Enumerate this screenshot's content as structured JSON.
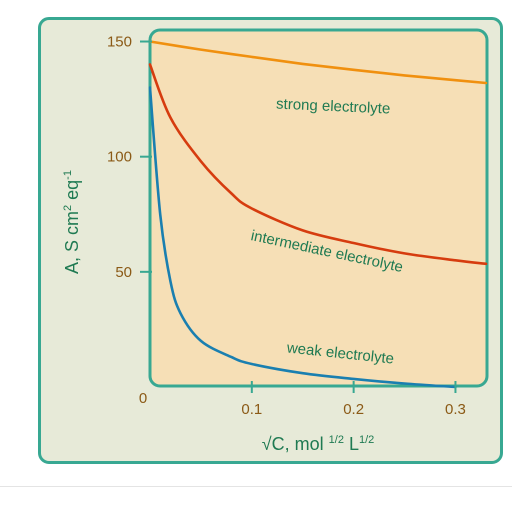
{
  "colors": {
    "panel_bg": "#e7ead8",
    "panel_border": "#38a892",
    "plot_bg": "#f6dfb6",
    "plot_border": "#38a892",
    "tick_text": "#8b5a16",
    "axis_label": "#1f7a52"
  },
  "chart_data": {
    "type": "line",
    "title": "",
    "xlabel": {
      "prefix": "√C, mol ",
      "sup1": "1/2",
      "mid": " L",
      "sup2": "1/2"
    },
    "ylabel": {
      "prefix": "A, S cm",
      "sup1": "2",
      "mid": " eq",
      "sup2": "-1"
    },
    "xlim": [
      0,
      0.33
    ],
    "ylim": [
      0,
      155
    ],
    "xticks": [
      0.1,
      0.2,
      0.3
    ],
    "xtick_labels": [
      "0.1",
      "0.2",
      "0.3"
    ],
    "yticks": [
      50,
      100,
      150
    ],
    "ytick_labels": [
      "50",
      "100",
      "150"
    ],
    "origin_label": "0",
    "grid": false,
    "legend": "none",
    "series": [
      {
        "name": "strong electrolyte",
        "color": "#f0900f",
        "x": [
          0,
          0.05,
          0.1,
          0.15,
          0.2,
          0.25,
          0.3,
          0.33
        ],
        "y": [
          150,
          146.5,
          143.3,
          140.3,
          137.7,
          135.3,
          133.2,
          132
        ]
      },
      {
        "name": "intermediate electrolyte",
        "color": "#d63c0f",
        "x": [
          0,
          0.02,
          0.05,
          0.08,
          0.1,
          0.15,
          0.2,
          0.25,
          0.3,
          0.33
        ],
        "y": [
          140,
          117,
          98,
          84,
          77.5,
          68,
          62.5,
          58,
          55,
          53.5
        ]
      },
      {
        "name": "weak electrolyte",
        "color": "#1a7fb0",
        "x": [
          0,
          0.01,
          0.02,
          0.03,
          0.05,
          0.08,
          0.1,
          0.15,
          0.2,
          0.25,
          0.3
        ],
        "y": [
          130,
          75,
          46,
          32,
          20,
          13,
          10,
          6,
          3.5,
          1.5,
          0
        ]
      }
    ]
  }
}
